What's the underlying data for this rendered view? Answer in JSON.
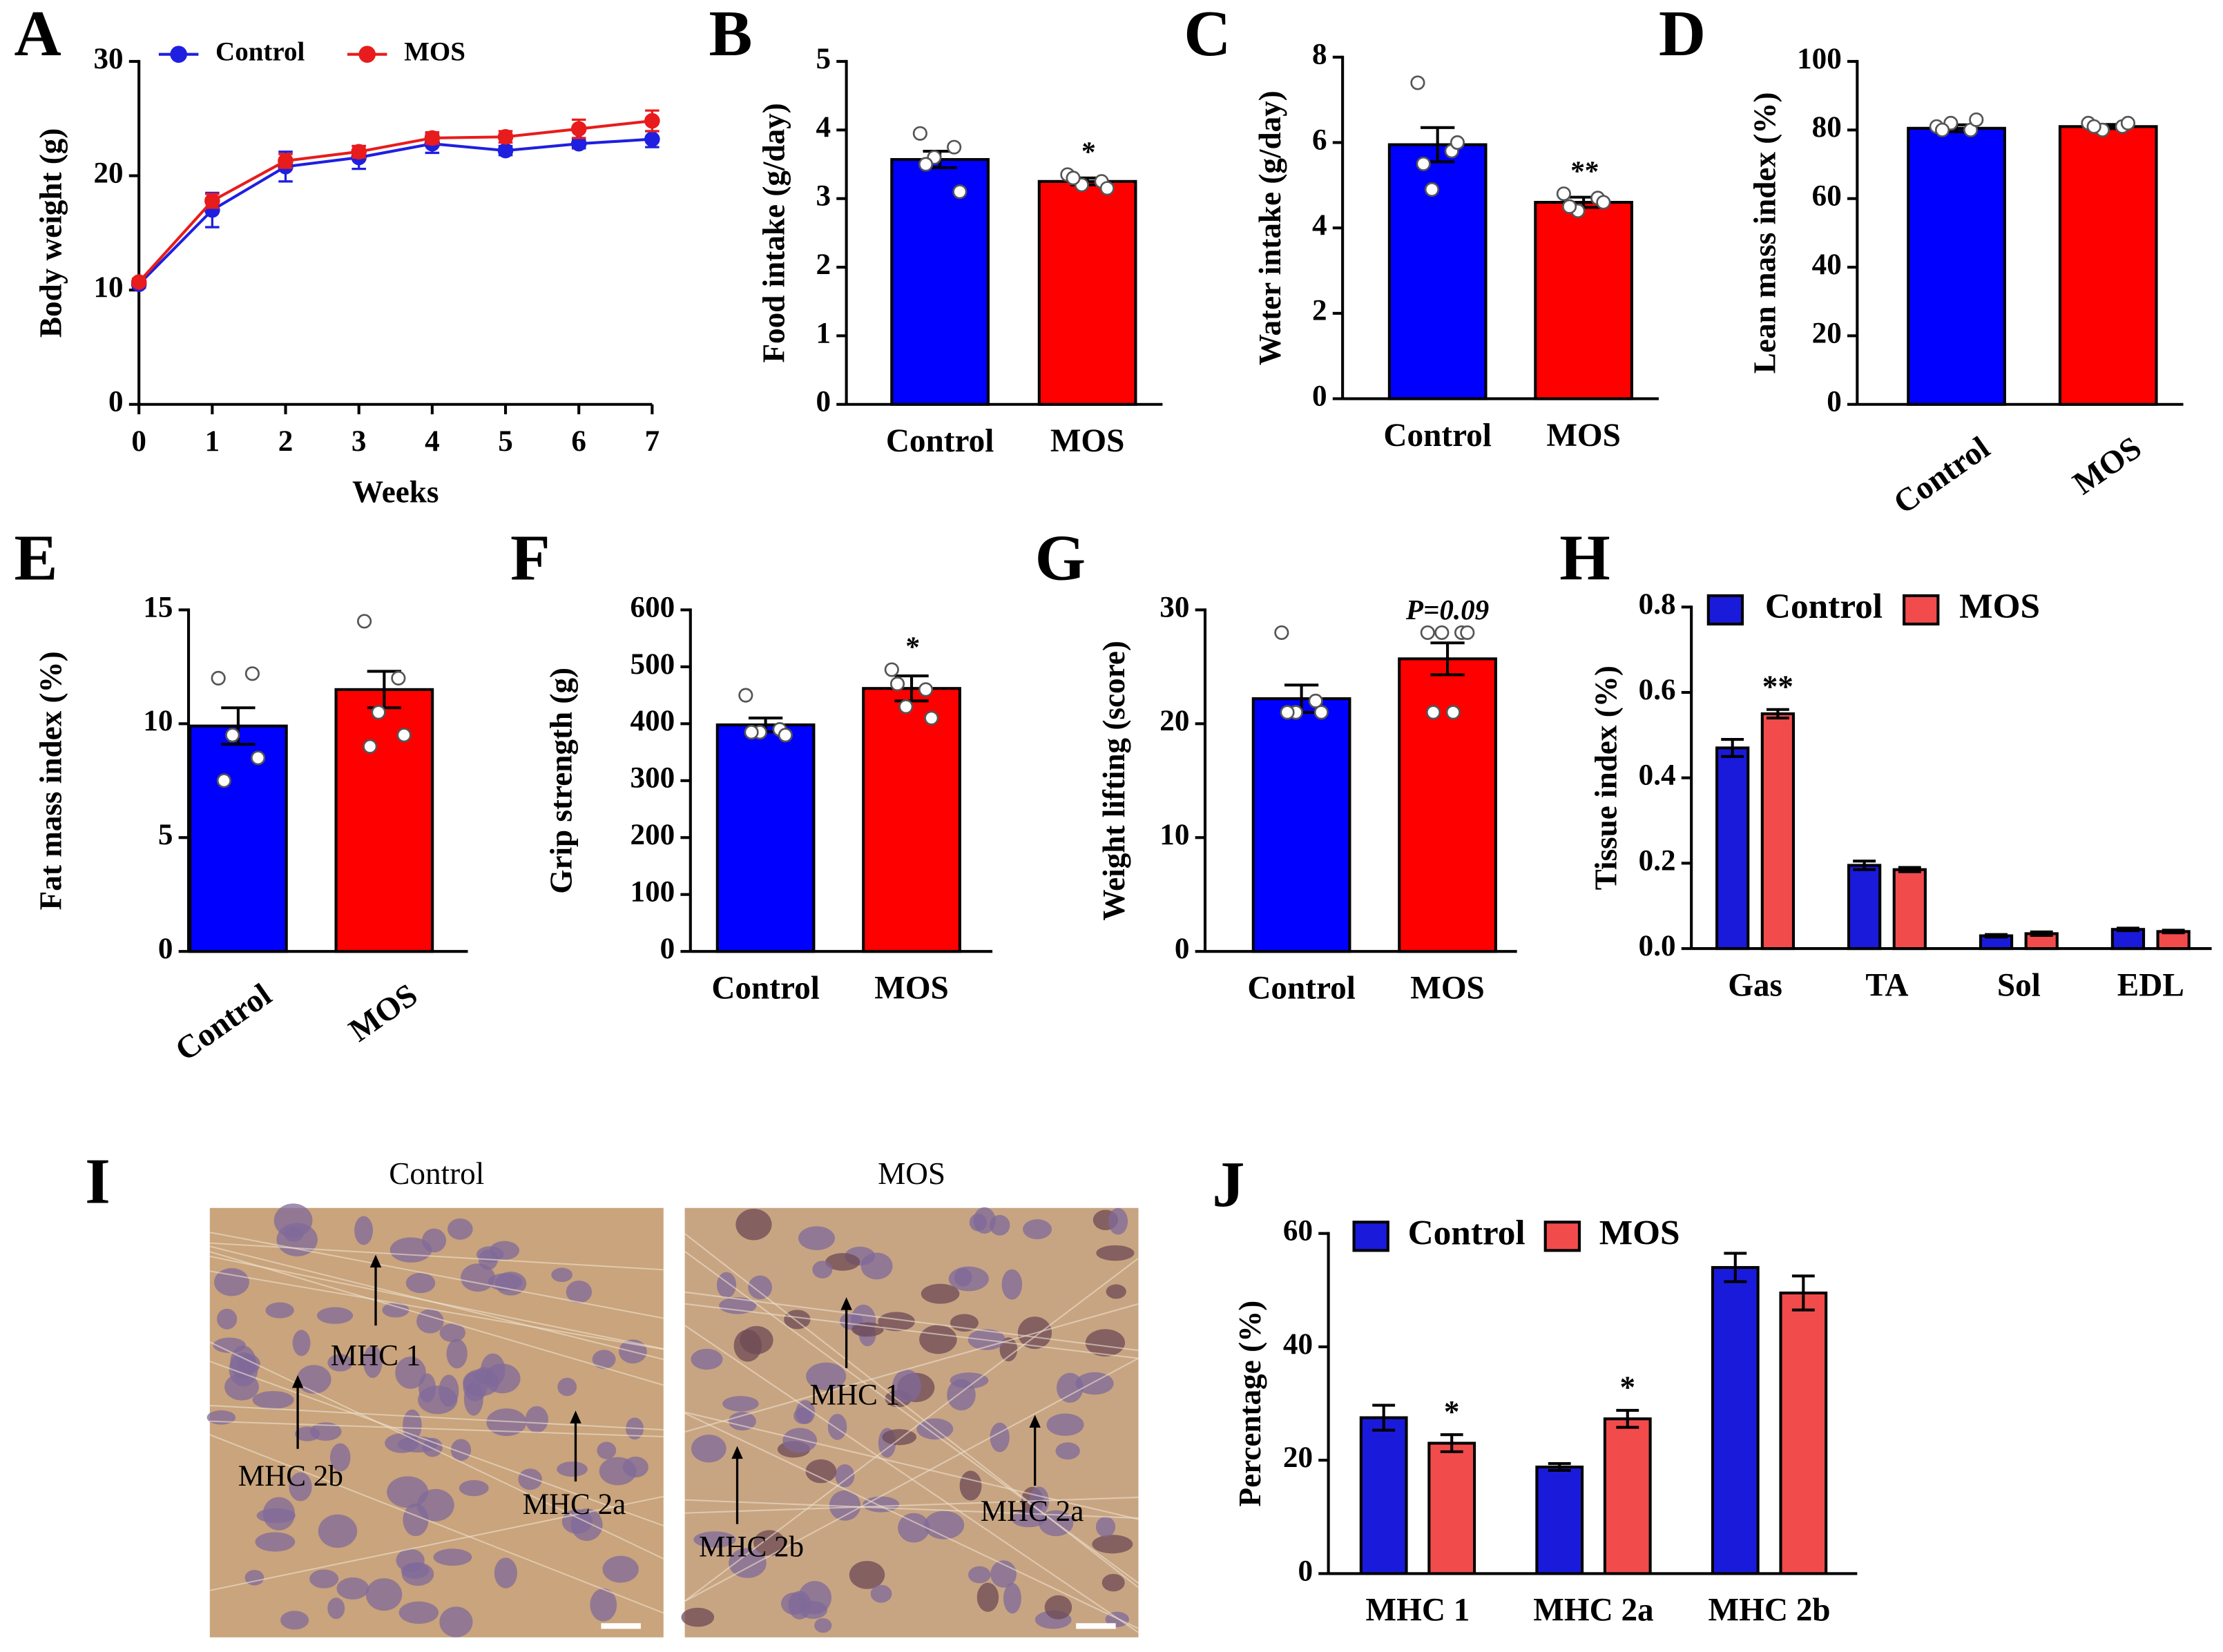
{
  "chart_data": [
    {
      "type": "line",
      "panel": "A",
      "y_label": "Body weight (g)",
      "x_label": "Weeks",
      "x": [
        0,
        1,
        2,
        3,
        4,
        5,
        6,
        7
      ],
      "xlim": [
        0,
        7
      ],
      "xticks": [
        0,
        1,
        2,
        3,
        4,
        5,
        6,
        7
      ],
      "ylim": [
        0,
        30
      ],
      "yticks": [
        0,
        10,
        20,
        30
      ],
      "legend": "top",
      "series": [
        {
          "name": "Control",
          "color": "#1f1fe0",
          "values": [
            10.5,
            17,
            20.8,
            21.6,
            22.8,
            22.2,
            22.8,
            23.2
          ],
          "errors": [
            0.3,
            1.5,
            1.3,
            1.0,
            0.8,
            0.4,
            0.4,
            0.7
          ]
        },
        {
          "name": "MOS",
          "color": "#e81c1c",
          "values": [
            10.7,
            17.8,
            21.3,
            22.1,
            23.3,
            23.4,
            24.1,
            24.8
          ],
          "errors": [
            0.3,
            0.6,
            0.6,
            0.5,
            0.5,
            0.5,
            0.8,
            0.9
          ]
        }
      ]
    },
    {
      "type": "bar",
      "panel": "B",
      "y_label": "Food intake (g/day)",
      "categories": [
        "Control",
        "MOS"
      ],
      "values": [
        3.57,
        3.25
      ],
      "errors": [
        0.12,
        0.05
      ],
      "colors": [
        "#0000ff",
        "#ff0000"
      ],
      "points": [
        [
          3.95,
          3.75,
          3.6,
          3.1,
          3.5
        ],
        [
          3.35,
          3.25,
          3.2,
          3.15,
          3.3
        ]
      ],
      "significance": [
        null,
        "*"
      ],
      "ylim": [
        0,
        5
      ],
      "yticks": [
        0,
        1,
        2,
        3,
        4,
        5
      ]
    },
    {
      "type": "bar",
      "panel": "C",
      "y_label": "Water intake (g/day)",
      "categories": [
        "Control",
        "MOS"
      ],
      "values": [
        5.95,
        4.6
      ],
      "errors": [
        0.4,
        0.12
      ],
      "colors": [
        "#0000ff",
        "#ff0000"
      ],
      "points": [
        [
          7.4,
          5.8,
          4.9,
          6.0,
          5.5
        ],
        [
          4.8,
          4.7,
          4.4,
          4.6,
          4.5
        ]
      ],
      "significance": [
        null,
        "**"
      ],
      "ylim": [
        0,
        8
      ],
      "yticks": [
        0,
        2,
        4,
        6,
        8
      ]
    },
    {
      "type": "bar",
      "panel": "D",
      "y_label": "Lean mass index (%)",
      "categories": [
        "Control",
        "MOS"
      ],
      "values": [
        80.5,
        81
      ],
      "errors": [
        1,
        0.6
      ],
      "colors": [
        "#0000ff",
        "#ff0000"
      ],
      "points": [
        [
          81,
          80,
          82,
          83,
          80
        ],
        [
          82,
          81,
          80,
          82,
          81
        ]
      ],
      "rotated_xlabels": true,
      "ylim": [
        0,
        100
      ],
      "yticks": [
        0,
        20,
        40,
        60,
        80,
        100
      ]
    },
    {
      "type": "bar",
      "panel": "E",
      "y_label": "Fat mass index (%)",
      "categories": [
        "Control",
        "MOS"
      ],
      "values": [
        9.9,
        11.5
      ],
      "errors": [
        0.8,
        0.8
      ],
      "colors": [
        "#0000ff",
        "#ff0000"
      ],
      "points": [
        [
          12.0,
          12.2,
          9.5,
          8.5,
          7.5
        ],
        [
          14.5,
          12.0,
          10.5,
          9.5,
          9.0
        ]
      ],
      "rotated_xlabels": true,
      "ylim": [
        0,
        15
      ],
      "yticks": [
        0,
        5,
        10,
        15
      ]
    },
    {
      "type": "bar",
      "panel": "F",
      "y_label": "Grip strength (g)",
      "categories": [
        "Control",
        "MOS"
      ],
      "values": [
        398,
        462
      ],
      "errors": [
        12,
        22
      ],
      "colors": [
        "#0000ff",
        "#ff0000"
      ],
      "points": [
        [
          450,
          390,
          385,
          380,
          385
        ],
        [
          495,
          460,
          430,
          410,
          470
        ]
      ],
      "significance": [
        null,
        "*"
      ],
      "ylim": [
        0,
        600
      ],
      "yticks": [
        0,
        100,
        200,
        300,
        400,
        500,
        600
      ]
    },
    {
      "type": "bar",
      "panel": "G",
      "y_label": "Weight lifting (score)",
      "categories": [
        "Control",
        "MOS"
      ],
      "values": [
        22.2,
        25.7
      ],
      "errors": [
        1.2,
        1.4
      ],
      "colors": [
        "#0000ff",
        "#ff0000"
      ],
      "points": [
        [
          28,
          22,
          21,
          21,
          21
        ],
        [
          28,
          28,
          28,
          28,
          21,
          21
        ]
      ],
      "significance": [
        null,
        "P=0.09"
      ],
      "ylim": [
        0,
        30
      ],
      "yticks": [
        0,
        10,
        20,
        30
      ]
    },
    {
      "type": "grouped_bar",
      "panel": "H",
      "y_label": "Tissue index (%)",
      "categories": [
        "Gas",
        "TA",
        "Sol",
        "EDL"
      ],
      "ylim": [
        0,
        0.8
      ],
      "yticks": [
        {
          "value": 0,
          "label": "0.0"
        },
        0.2,
        0.4,
        0.6,
        0.8
      ],
      "legend": "top",
      "series": [
        {
          "name": "Control",
          "color": "#1a1adb",
          "values": [
            0.47,
            0.195,
            0.03,
            0.045
          ],
          "errors": [
            0.02,
            0.01,
            0.003,
            0.003
          ],
          "significance": [
            null,
            null,
            null,
            null
          ]
        },
        {
          "name": "MOS",
          "color": "#f24b4b",
          "values": [
            0.55,
            0.185,
            0.035,
            0.04
          ],
          "errors": [
            0.01,
            0.005,
            0.004,
            0.003
          ],
          "significance": [
            "**",
            null,
            null,
            null
          ]
        }
      ]
    },
    {
      "type": "image",
      "panel": "I",
      "images": [
        {
          "title": "Control",
          "labels": [
            "MHC 1",
            "MHC 2b",
            "MHC 2a"
          ]
        },
        {
          "title": "MOS",
          "labels": [
            "MHC 1",
            "MHC 2b",
            "MHC 2a"
          ]
        }
      ]
    },
    {
      "type": "grouped_bar",
      "panel": "J",
      "y_label": "Percentage (%)",
      "categories": [
        "MHC 1",
        "MHC 2a",
        "MHC 2b"
      ],
      "ylim": [
        0,
        60
      ],
      "yticks": [
        0,
        20,
        40,
        60
      ],
      "legend": "top",
      "series": [
        {
          "name": "Control",
          "color": "#1a1adb",
          "values": [
            27.5,
            18.8,
            54
          ],
          "errors": [
            2.2,
            0.6,
            2.5
          ],
          "significance": [
            null,
            null,
            null
          ]
        },
        {
          "name": "MOS",
          "color": "#f24b4b",
          "values": [
            23,
            27.3,
            49.5
          ],
          "errors": [
            1.5,
            1.5,
            3
          ],
          "significance": [
            "*",
            "*",
            null
          ]
        }
      ]
    }
  ]
}
